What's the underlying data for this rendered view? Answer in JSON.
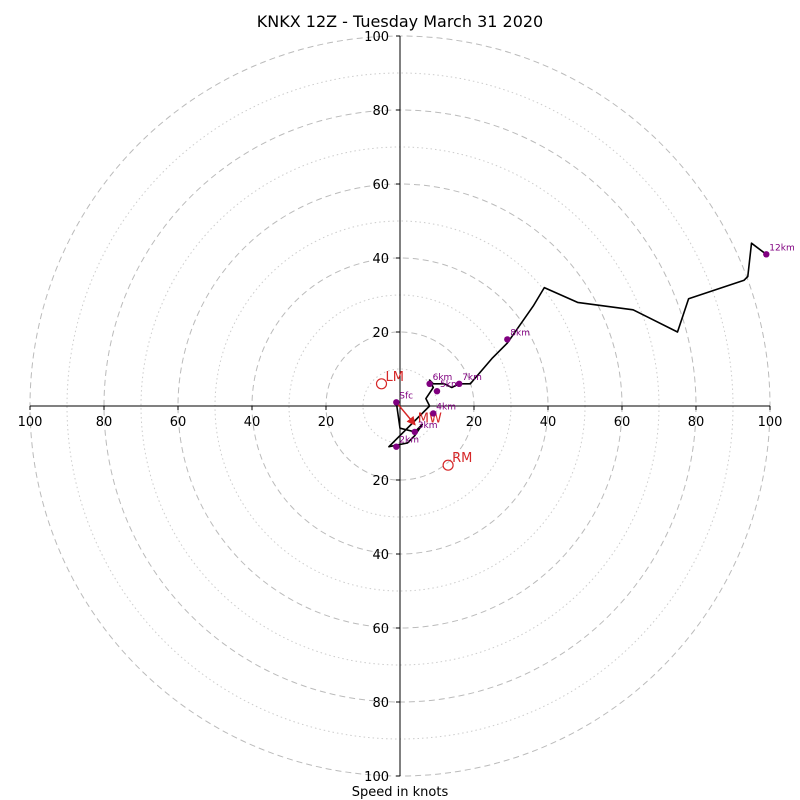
{
  "chart_data": {
    "type": "hodograph",
    "title": "KNKX 12Z - Tuesday March 31 2020",
    "xlabel": "Speed in knots",
    "range": [
      -100,
      100
    ],
    "ring_major": [
      20,
      40,
      60,
      80,
      100
    ],
    "ring_minor": [
      10,
      30,
      50,
      70,
      90
    ],
    "x_ticks": [
      "100",
      "80",
      "60",
      "40",
      "20",
      "20",
      "40",
      "60",
      "80",
      "100"
    ],
    "x_tick_values": [
      -100,
      -80,
      -60,
      -40,
      -20,
      20,
      40,
      60,
      80,
      100
    ],
    "y_ticks": [
      "100",
      "80",
      "60",
      "40",
      "20",
      "20",
      "40",
      "60",
      "80",
      "100"
    ],
    "y_tick_values": [
      100,
      80,
      60,
      40,
      20,
      -20,
      -40,
      -60,
      -80,
      -100
    ],
    "profile": [
      [
        -1,
        1
      ],
      [
        0,
        -6
      ],
      [
        4,
        -7
      ],
      [
        6,
        -5
      ],
      [
        4,
        -8
      ],
      [
        2,
        -10
      ],
      [
        -3,
        -11
      ],
      [
        8,
        0
      ],
      [
        7,
        2
      ],
      [
        9,
        5
      ],
      [
        8,
        7
      ],
      [
        9,
        6
      ],
      [
        12,
        6
      ],
      [
        14,
        5
      ],
      [
        16,
        6
      ],
      [
        19,
        6
      ],
      [
        25,
        13
      ],
      [
        29,
        17
      ],
      [
        36,
        27
      ],
      [
        39,
        32
      ],
      [
        48,
        28
      ],
      [
        63,
        26
      ],
      [
        67,
        24
      ],
      [
        75,
        20
      ],
      [
        78,
        29
      ],
      [
        93,
        34
      ],
      [
        94,
        35
      ],
      [
        95,
        44
      ],
      [
        99,
        41
      ]
    ],
    "height_markers": [
      {
        "label": "Sfc",
        "u": -1,
        "v": 1
      },
      {
        "label": "2km",
        "u": -1,
        "v": -11
      },
      {
        "label": "3km",
        "u": 4,
        "v": -7
      },
      {
        "label": "4km",
        "u": 9,
        "v": -2
      },
      {
        "label": "5km",
        "u": 10,
        "v": 4
      },
      {
        "label": "6km",
        "u": 8,
        "v": 6
      },
      {
        "label": "7km",
        "u": 16,
        "v": 6
      },
      {
        "label": "8km",
        "u": 29,
        "v": 18
      },
      {
        "label": "12km",
        "u": 99,
        "v": 41
      }
    ],
    "storm_motion": [
      {
        "label": "LM",
        "u": -5,
        "v": 6
      },
      {
        "label": "RM",
        "u": 13,
        "v": -16
      },
      {
        "label": "MW",
        "u": 4,
        "v": -5
      }
    ],
    "colors": {
      "profile": "#000000",
      "height_marker": "#800080",
      "storm_motion": "#d62728",
      "grid": "#bbbbbb"
    }
  }
}
